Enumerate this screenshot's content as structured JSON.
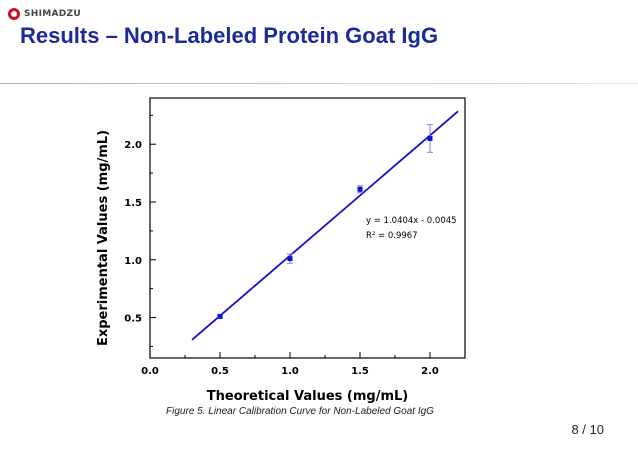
{
  "header": {
    "logo_text": "SHIMADZU",
    "title": "Results – Non-Labeled Protein Goat IgG"
  },
  "caption": "Figure 5. Linear Calibration Curve for Non-Labeled Goat IgG",
  "page_number": "8 / 10",
  "colors": {
    "title": "#1d2a9c",
    "series": "#1010cc",
    "error_bar": "#8080e0"
  },
  "chart_data": {
    "type": "scatter",
    "title": "",
    "xlabel": "Theoretical Values (mg/mL)",
    "ylabel": "Experimental Values (mg/mL)",
    "xlim": [
      0.0,
      2.25
    ],
    "ylim": [
      0.15,
      2.4
    ],
    "x_ticks": [
      "0.0",
      "0.5",
      "1.0",
      "1.5",
      "2.0"
    ],
    "y_ticks": [
      "0.5",
      "1.0",
      "1.5",
      "2.0"
    ],
    "grid": false,
    "series": [
      {
        "points": [
          {
            "x": 0.5,
            "y": 0.51,
            "err": 0.01
          },
          {
            "x": 1.0,
            "y": 1.01,
            "err": 0.04
          },
          {
            "x": 1.5,
            "y": 1.61,
            "err": 0.03
          },
          {
            "x": 2.0,
            "y": 2.05,
            "err": 0.12
          }
        ]
      }
    ],
    "fit_line": {
      "slope": 1.0404,
      "intercept": -0.0045,
      "x_range": [
        0.3,
        2.2
      ]
    },
    "annotations": [
      "y = 1.0404x - 0.0045",
      "R² = 0.9967"
    ]
  }
}
